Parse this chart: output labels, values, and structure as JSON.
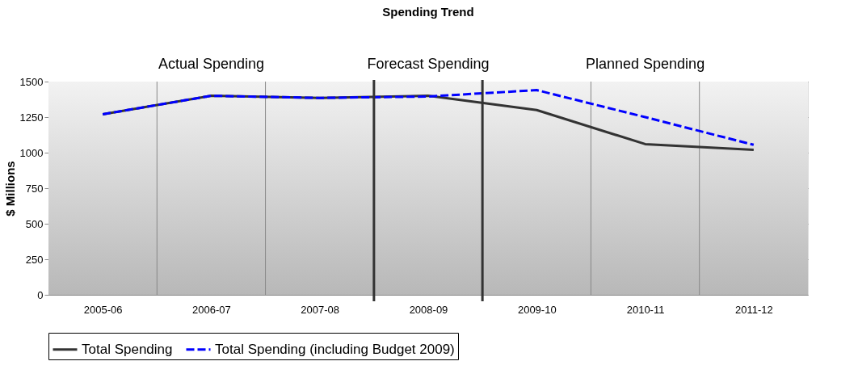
{
  "chart_data": {
    "type": "line",
    "title": "Spending Trend",
    "ylabel": "$ Millions",
    "categories": [
      "2005-06",
      "2006-07",
      "2007-08",
      "2008-09",
      "2009-10",
      "2010-11",
      "2011-12"
    ],
    "series": [
      {
        "name": "Total Spending",
        "color": "#333333",
        "line_style": "solid",
        "values": [
          1270,
          1400,
          1385,
          1400,
          1300,
          1060,
          1020
        ]
      },
      {
        "name": "Total Spending (including Budget 2009)",
        "color": "#0000ff",
        "line_style": "dashed",
        "values": [
          1270,
          1400,
          1385,
          1395,
          1440,
          1250,
          1055
        ]
      }
    ],
    "ylim": [
      0,
      1500
    ],
    "yticks": [
      0,
      250,
      500,
      750,
      1000,
      1250,
      1500
    ],
    "annotations": [
      "Actual Spending",
      "Forecast Spending",
      "Planned Spending"
    ],
    "grid": true,
    "legend": "bottom",
    "marker": "none"
  }
}
